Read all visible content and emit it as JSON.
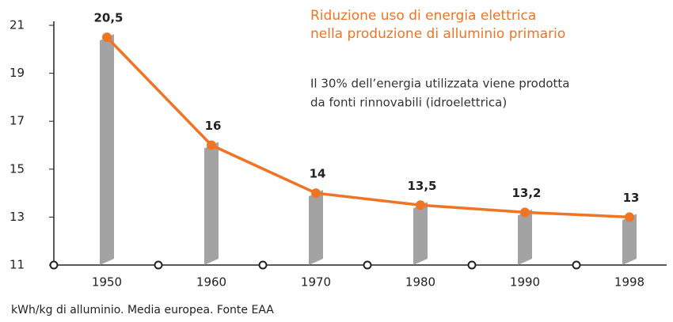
{
  "chart_data": {
    "type": "bar",
    "title": [
      "Riduzione uso di energia elettrica",
      "nella produzione di alluminio primario"
    ],
    "subtitle": [
      "Il 30% dell’energia utilizzata viene prodotta",
      "da fonti rinnovabili (idroelettrica)"
    ],
    "footnote": "kWh/kg di alluminio. Media europea. Fonte EAA",
    "categories": [
      "1950",
      "1960",
      "1970",
      "1980",
      "1990",
      "1998"
    ],
    "values": [
      20.5,
      16,
      14,
      13.5,
      13.2,
      13
    ],
    "value_labels": [
      "20,5",
      "16",
      "14",
      "13,5",
      "13,2",
      "13"
    ],
    "color": "#a3a3a3",
    "line_color": "#f07424",
    "ylim": [
      11,
      21
    ],
    "yticks": [
      11,
      13,
      15,
      17,
      19,
      21
    ],
    "grid": false
  }
}
